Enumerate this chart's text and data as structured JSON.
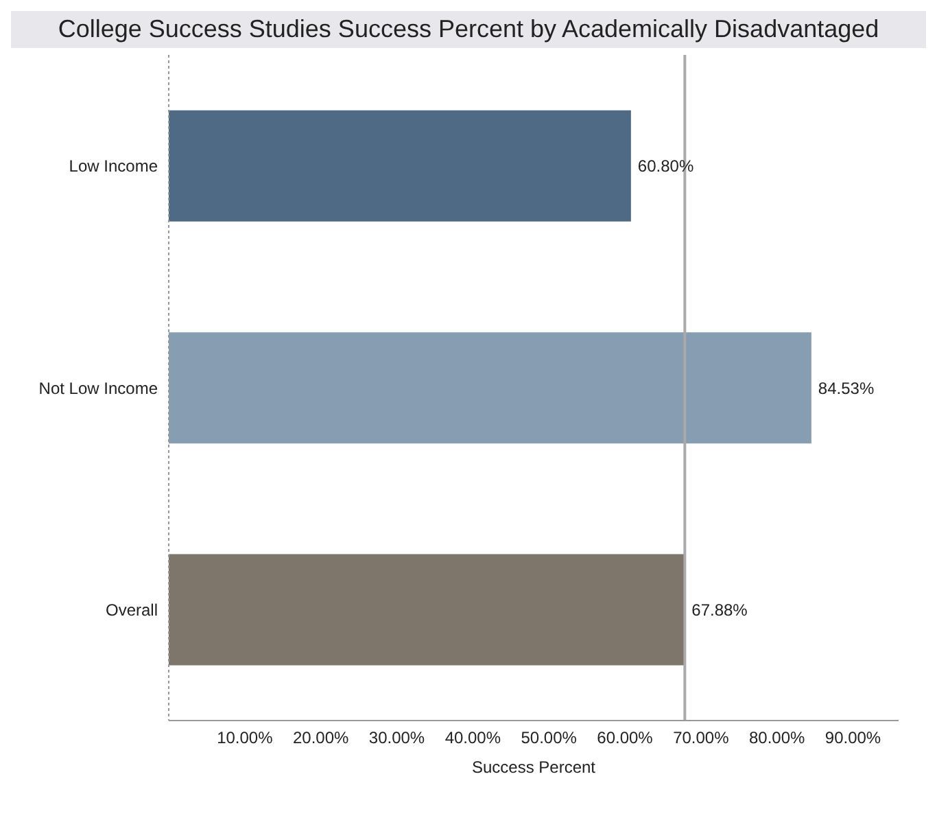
{
  "chart_data": {
    "type": "bar",
    "orientation": "horizontal",
    "title": "College Success Studies Success Percent by Academically Disadvantaged",
    "xlabel": "Success Percent",
    "categories": [
      "Low Income",
      "Not Low Income",
      "Overall"
    ],
    "values": [
      60.8,
      84.53,
      67.88
    ],
    "colors": [
      "#4f6a84",
      "#879eb2",
      "#7e756b"
    ],
    "value_labels": [
      "60.80%",
      "84.53%",
      "67.88%"
    ],
    "xlim": [
      0,
      96
    ],
    "xticks": [
      {
        "value": 10,
        "label": "10.00%"
      },
      {
        "value": 20,
        "label": "20.00%"
      },
      {
        "value": 30,
        "label": "30.00%"
      },
      {
        "value": 40,
        "label": "40.00%"
      },
      {
        "value": 50,
        "label": "50.00%"
      },
      {
        "value": 60,
        "label": "60.00%"
      },
      {
        "value": 70,
        "label": "70.00%"
      },
      {
        "value": 80,
        "label": "80.00%"
      },
      {
        "value": 90,
        "label": "90.00%"
      }
    ],
    "ref_lines": [
      {
        "axis": "x",
        "value": 67.88,
        "color": "#aaaaaa"
      }
    ]
  }
}
